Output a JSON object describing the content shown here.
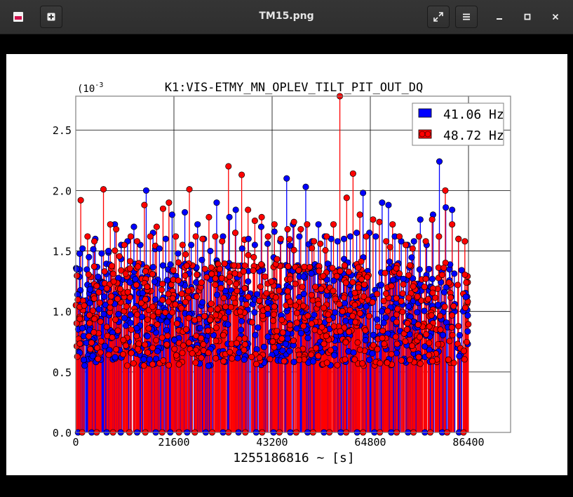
{
  "window": {
    "title": "TM15.png",
    "buttons": {
      "app": "image-viewer-icon",
      "new": "plus-icon",
      "fullscreen": "expand-icon",
      "menu": "hamburger-icon",
      "minimize": "minimize-icon",
      "maximize": "maximize-icon",
      "close": "close-icon"
    }
  },
  "chart_data": {
    "type": "scatter",
    "title": "K1:VIS-ETMY_MN_OPLEV_TILT_PIT_OUT_DQ",
    "xlabel": "1255186816 ~ [s]",
    "ylabel": "",
    "scale_prefix": "(10",
    "scale_exp": "-3",
    "xlim": [
      0,
      86400
    ],
    "ylim": [
      0,
      2.78
    ],
    "x_ticks": [
      0,
      21600,
      43200,
      64800,
      86400
    ],
    "x_tick_labels": [
      "0",
      "21600",
      "43200",
      "64800",
      "86400"
    ],
    "y_ticks": [
      0,
      0.5,
      1.0,
      1.5,
      2.0,
      2.5
    ],
    "y_tick_labels": [
      "0.0",
      "0.5",
      "1.0",
      "1.5",
      "2.0",
      "2.5"
    ],
    "grid": true,
    "legend": "top-right",
    "stems": true,
    "series": [
      {
        "name": "41.06 Hz",
        "color": "#0000ff",
        "x": [
          200,
          1500,
          2900,
          4300,
          5700,
          7200,
          8600,
          10000,
          11400,
          12800,
          14200,
          15500,
          17000,
          18400,
          19800,
          21200,
          22500,
          24000,
          25400,
          26800,
          28200,
          29600,
          31000,
          32400,
          33800,
          35200,
          36600,
          38000,
          39400,
          40800,
          42200,
          43700,
          45000,
          46400,
          47800,
          49200,
          50600,
          52000,
          53400,
          54800,
          56200,
          57600,
          59000,
          60400,
          61800,
          63200,
          64600,
          66000,
          67400,
          68800,
          70200,
          71600,
          73000,
          74400,
          75800,
          77200,
          78600,
          80000,
          81400,
          82800,
          84200,
          85800
        ],
        "y": [
          1.35,
          1.52,
          1.45,
          1.6,
          1.48,
          1.5,
          1.72,
          1.55,
          1.58,
          1.7,
          1.55,
          2.0,
          1.65,
          1.52,
          1.6,
          1.8,
          1.48,
          1.82,
          1.55,
          1.72,
          1.6,
          1.5,
          1.9,
          1.62,
          1.78,
          1.84,
          1.52,
          1.6,
          1.55,
          1.7,
          1.56,
          1.66,
          1.58,
          2.1,
          1.72,
          1.62,
          2.03,
          1.58,
          1.72,
          1.62,
          1.6,
          1.58,
          1.6,
          1.62,
          1.65,
          1.98,
          1.65,
          1.62,
          1.9,
          1.88,
          1.62,
          1.58,
          1.55,
          1.58,
          1.76,
          1.55,
          1.8,
          2.24,
          1.86,
          1.84,
          1.6,
          1.12
        ],
        "bottom_x": [
          500,
          3500,
          6800,
          9900,
          13500,
          17600,
          20800,
          24500,
          28600,
          32400,
          35800,
          39700,
          43500,
          47200,
          51000,
          54600,
          58300,
          61900,
          65700,
          69400,
          73100,
          76800,
          80600,
          84300
        ],
        "bottom_y": [
          0.0,
          0.0,
          0.0,
          0.0,
          0.0,
          0.0,
          0.0,
          0.0,
          0.0,
          0.0,
          0.0,
          0.0,
          0.0,
          0.0,
          0.0,
          0.0,
          0.0,
          0.0,
          0.0,
          0.0,
          0.0,
          0.0,
          0.0,
          0.0
        ]
      },
      {
        "name": "48.72 Hz",
        "color": "#ff0000",
        "x": [
          1100,
          2600,
          4100,
          6100,
          7600,
          8900,
          10700,
          12100,
          13500,
          15100,
          16400,
          17800,
          19200,
          20500,
          22000,
          23500,
          25000,
          26400,
          27900,
          29300,
          30700,
          32200,
          33600,
          35100,
          36500,
          37900,
          39400,
          40900,
          42300,
          43700,
          45100,
          46600,
          48000,
          49500,
          50900,
          52400,
          53800,
          55200,
          56700,
          58100,
          59600,
          61000,
          62500,
          63900,
          65400,
          66800,
          68300,
          69700,
          71200,
          72600,
          74100,
          75500,
          77000,
          78400,
          79900,
          81300,
          82800,
          84200,
          85600
        ],
        "y": [
          1.92,
          1.62,
          1.58,
          2.01,
          1.72,
          1.68,
          1.55,
          1.62,
          1.58,
          1.88,
          1.62,
          1.7,
          1.85,
          1.9,
          1.62,
          1.55,
          2.01,
          1.62,
          1.6,
          1.78,
          1.62,
          1.58,
          2.2,
          1.65,
          2.13,
          1.84,
          1.75,
          1.78,
          1.62,
          1.72,
          1.6,
          1.68,
          1.74,
          1.68,
          1.72,
          1.58,
          1.56,
          1.62,
          1.72,
          2.78,
          1.94,
          2.14,
          1.8,
          1.62,
          1.76,
          1.74,
          1.58,
          1.72,
          1.62,
          1.55,
          1.52,
          1.62,
          1.58,
          1.76,
          1.62,
          2.0,
          1.72,
          1.6,
          1.58
        ],
        "bottom_x": [
          1400,
          4600,
          8200,
          11800,
          15300,
          19000,
          22700,
          26200,
          30000,
          33600,
          37300,
          41000,
          44800,
          48500,
          52200,
          55800,
          59500,
          63200,
          66900,
          70600,
          74300,
          78000,
          81700,
          85300
        ],
        "bottom_y": [
          0.0,
          0.0,
          0.0,
          0.0,
          0.0,
          0.0,
          0.0,
          0.0,
          0.0,
          0.0,
          0.0,
          0.0,
          0.0,
          0.0,
          0.0,
          0.0,
          0.0,
          0.0,
          0.0,
          0.0,
          0.0,
          0.0,
          0.0,
          0.0
        ]
      }
    ]
  }
}
